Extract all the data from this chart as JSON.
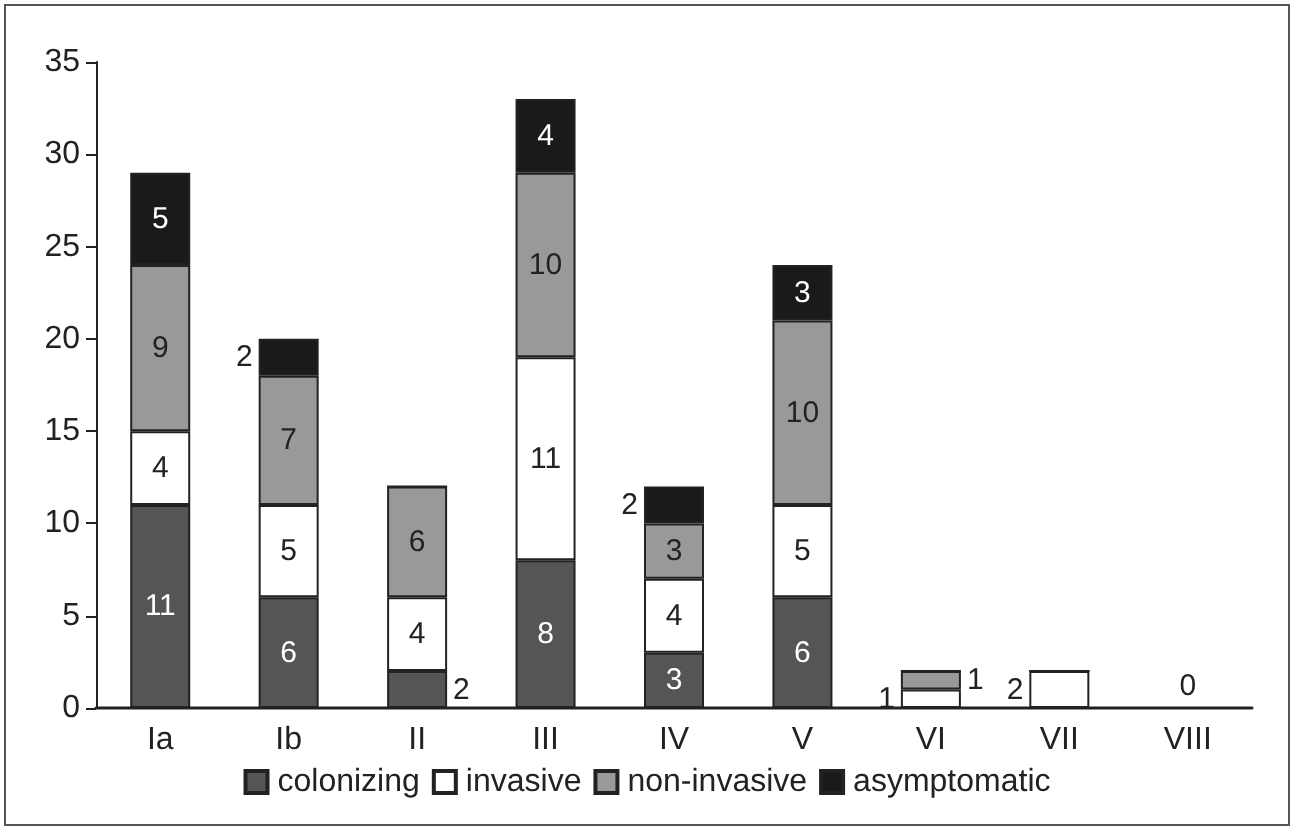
{
  "chart_data": {
    "type": "bar",
    "stacked": true,
    "categories": [
      "Ia",
      "Ib",
      "II",
      "III",
      "IV",
      "V",
      "VI",
      "VII",
      "VIII"
    ],
    "series": [
      {
        "name": "colonizing",
        "color": "#555555",
        "values": [
          11,
          6,
          2,
          8,
          3,
          6,
          0,
          0,
          0
        ],
        "value_labels": [
          "11",
          "6",
          "2",
          "8",
          "3",
          "6",
          null,
          null,
          "0"
        ]
      },
      {
        "name": "invasive",
        "color": "#ffffff",
        "values": [
          4,
          5,
          4,
          11,
          4,
          5,
          1,
          2,
          0
        ],
        "value_labels": [
          "4",
          "5",
          "4",
          "11",
          "4",
          "5",
          "1",
          "2",
          null
        ]
      },
      {
        "name": "non-invasive",
        "color": "#999999",
        "values": [
          9,
          7,
          6,
          10,
          3,
          10,
          1,
          0,
          0
        ],
        "value_labels": [
          "9",
          "7",
          "6",
          "10",
          "3",
          "10",
          "1",
          null,
          null
        ]
      },
      {
        "name": "asymptomatic",
        "color": "#1a1a1a",
        "values": [
          5,
          2,
          0,
          4,
          2,
          3,
          0,
          0,
          0
        ],
        "value_labels": [
          "5",
          "2",
          null,
          "4",
          "2",
          "3",
          null,
          null,
          null
        ]
      }
    ],
    "ylim": [
      0,
      35
    ],
    "yticks": [
      0,
      5,
      10,
      15,
      20,
      25,
      30,
      35
    ],
    "grid": false,
    "legend": "bottom"
  }
}
